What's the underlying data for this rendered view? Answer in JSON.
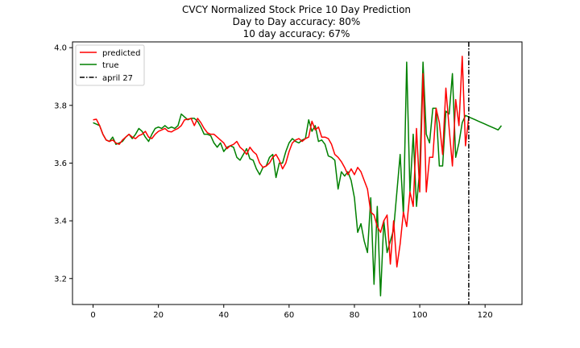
{
  "chart_data": {
    "type": "line",
    "title": "CVCY Normalized Stock Price 10 Day Prediction",
    "subtitle_lines": [
      "Day to Day accuracy: 80%",
      "10 day accuracy: 67%"
    ],
    "xlabel": "",
    "ylabel": "",
    "xlim": [
      -6.3,
      131.3
    ],
    "ylim": [
      3.11,
      4.02
    ],
    "x_ticks": [
      0,
      20,
      40,
      60,
      80,
      100,
      120
    ],
    "y_ticks": [
      3.2,
      3.4,
      3.6,
      3.8,
      4.0
    ],
    "x_tick_labels": [
      "0",
      "20",
      "40",
      "60",
      "80",
      "100",
      "120"
    ],
    "y_tick_labels": [
      "3.2",
      "3.4",
      "3.6",
      "3.8",
      "4.0"
    ],
    "grid": false,
    "legend_position": "top-left",
    "series": [
      {
        "name": "predicted",
        "color": "#ff0000",
        "x": [
          0,
          1,
          2,
          3,
          4,
          5,
          6,
          7,
          8,
          9,
          10,
          11,
          12,
          13,
          14,
          15,
          16,
          17,
          18,
          19,
          20,
          21,
          22,
          23,
          24,
          25,
          26,
          27,
          28,
          29,
          30,
          31,
          32,
          33,
          34,
          35,
          36,
          37,
          38,
          39,
          40,
          41,
          42,
          43,
          44,
          45,
          46,
          47,
          48,
          49,
          50,
          51,
          52,
          53,
          54,
          55,
          56,
          57,
          58,
          59,
          60,
          61,
          62,
          63,
          64,
          65,
          66,
          67,
          68,
          69,
          70,
          71,
          72,
          73,
          74,
          75,
          76,
          77,
          78,
          79,
          80,
          81,
          82,
          83,
          84,
          85,
          86,
          87,
          88,
          89,
          90,
          91,
          92,
          93,
          94,
          95,
          96,
          97,
          98,
          99,
          100,
          101,
          102,
          103,
          104,
          105,
          106,
          107,
          108,
          109,
          110,
          111,
          112,
          113,
          114,
          115
        ],
        "values": [
          3.75,
          3.752,
          3.73,
          3.7,
          3.68,
          3.675,
          3.68,
          3.67,
          3.665,
          3.68,
          3.69,
          3.7,
          3.69,
          3.685,
          3.695,
          3.7,
          3.71,
          3.69,
          3.685,
          3.7,
          3.71,
          3.715,
          3.72,
          3.71,
          3.708,
          3.715,
          3.72,
          3.73,
          3.75,
          3.752,
          3.755,
          3.73,
          3.755,
          3.74,
          3.72,
          3.705,
          3.7,
          3.7,
          3.69,
          3.68,
          3.67,
          3.65,
          3.66,
          3.665,
          3.675,
          3.655,
          3.645,
          3.63,
          3.655,
          3.64,
          3.63,
          3.6,
          3.585,
          3.59,
          3.6,
          3.62,
          3.63,
          3.61,
          3.58,
          3.6,
          3.64,
          3.67,
          3.68,
          3.685,
          3.675,
          3.685,
          3.69,
          3.745,
          3.715,
          3.725,
          3.69,
          3.69,
          3.685,
          3.665,
          3.63,
          3.62,
          3.605,
          3.585,
          3.56,
          3.58,
          3.56,
          3.585,
          3.57,
          3.54,
          3.51,
          3.43,
          3.42,
          3.38,
          3.36,
          3.4,
          3.42,
          3.25,
          3.4,
          3.24,
          3.32,
          3.43,
          3.38,
          3.5,
          3.45,
          3.72,
          3.5,
          3.91,
          3.5,
          3.62,
          3.62,
          3.79,
          3.74,
          3.63,
          3.86,
          3.72,
          3.59,
          3.82,
          3.73,
          3.97,
          3.66,
          3.76
        ],
        "style": "solid"
      },
      {
        "name": "true",
        "color": "#008000",
        "x": [
          0,
          1,
          2,
          3,
          4,
          5,
          6,
          7,
          8,
          9,
          10,
          11,
          12,
          13,
          14,
          15,
          16,
          17,
          18,
          19,
          20,
          21,
          22,
          23,
          24,
          25,
          26,
          27,
          28,
          29,
          30,
          31,
          32,
          33,
          34,
          35,
          36,
          37,
          38,
          39,
          40,
          41,
          42,
          43,
          44,
          45,
          46,
          47,
          48,
          49,
          50,
          51,
          52,
          53,
          54,
          55,
          56,
          57,
          58,
          59,
          60,
          61,
          62,
          63,
          64,
          65,
          66,
          67,
          68,
          69,
          70,
          71,
          72,
          73,
          74,
          75,
          76,
          77,
          78,
          79,
          80,
          81,
          82,
          83,
          84,
          85,
          86,
          87,
          88,
          89,
          90,
          91,
          92,
          93,
          94,
          95,
          96,
          97,
          98,
          99,
          100,
          101,
          102,
          103,
          104,
          105,
          106,
          107,
          108,
          109,
          110,
          111,
          112,
          113,
          114,
          115,
          116,
          117,
          118,
          119,
          120,
          121,
          122,
          123,
          124,
          125
        ],
        "values": [
          3.74,
          3.735,
          3.73,
          3.7,
          3.68,
          3.675,
          3.69,
          3.665,
          3.67,
          3.675,
          3.69,
          3.7,
          3.685,
          3.7,
          3.72,
          3.71,
          3.69,
          3.675,
          3.7,
          3.72,
          3.725,
          3.72,
          3.73,
          3.72,
          3.725,
          3.72,
          3.73,
          3.77,
          3.76,
          3.75,
          3.755,
          3.755,
          3.745,
          3.725,
          3.7,
          3.7,
          3.695,
          3.67,
          3.655,
          3.67,
          3.64,
          3.655,
          3.66,
          3.655,
          3.62,
          3.61,
          3.63,
          3.65,
          3.615,
          3.61,
          3.58,
          3.56,
          3.585,
          3.59,
          3.62,
          3.63,
          3.55,
          3.6,
          3.6,
          3.64,
          3.67,
          3.685,
          3.675,
          3.67,
          3.68,
          3.685,
          3.75,
          3.71,
          3.73,
          3.675,
          3.68,
          3.665,
          3.625,
          3.62,
          3.61,
          3.51,
          3.57,
          3.555,
          3.57,
          3.54,
          3.48,
          3.36,
          3.39,
          3.33,
          3.29,
          3.48,
          3.18,
          3.45,
          3.14,
          3.4,
          3.29,
          3.33,
          3.37,
          3.5,
          3.63,
          3.42,
          3.95,
          3.5,
          3.7,
          3.45,
          3.58,
          3.95,
          3.7,
          3.67,
          3.79,
          3.79,
          3.59,
          3.59,
          3.78,
          3.77,
          3.91,
          3.62,
          3.67,
          3.74,
          3.765,
          3.76,
          3.755,
          3.75,
          3.745,
          3.74,
          3.735,
          3.73,
          3.725,
          3.72,
          3.715,
          3.73
        ],
        "style": "solid"
      },
      {
        "name": "april 27",
        "color": "#000000",
        "vline_x": 115,
        "style": "dashdot"
      }
    ]
  }
}
